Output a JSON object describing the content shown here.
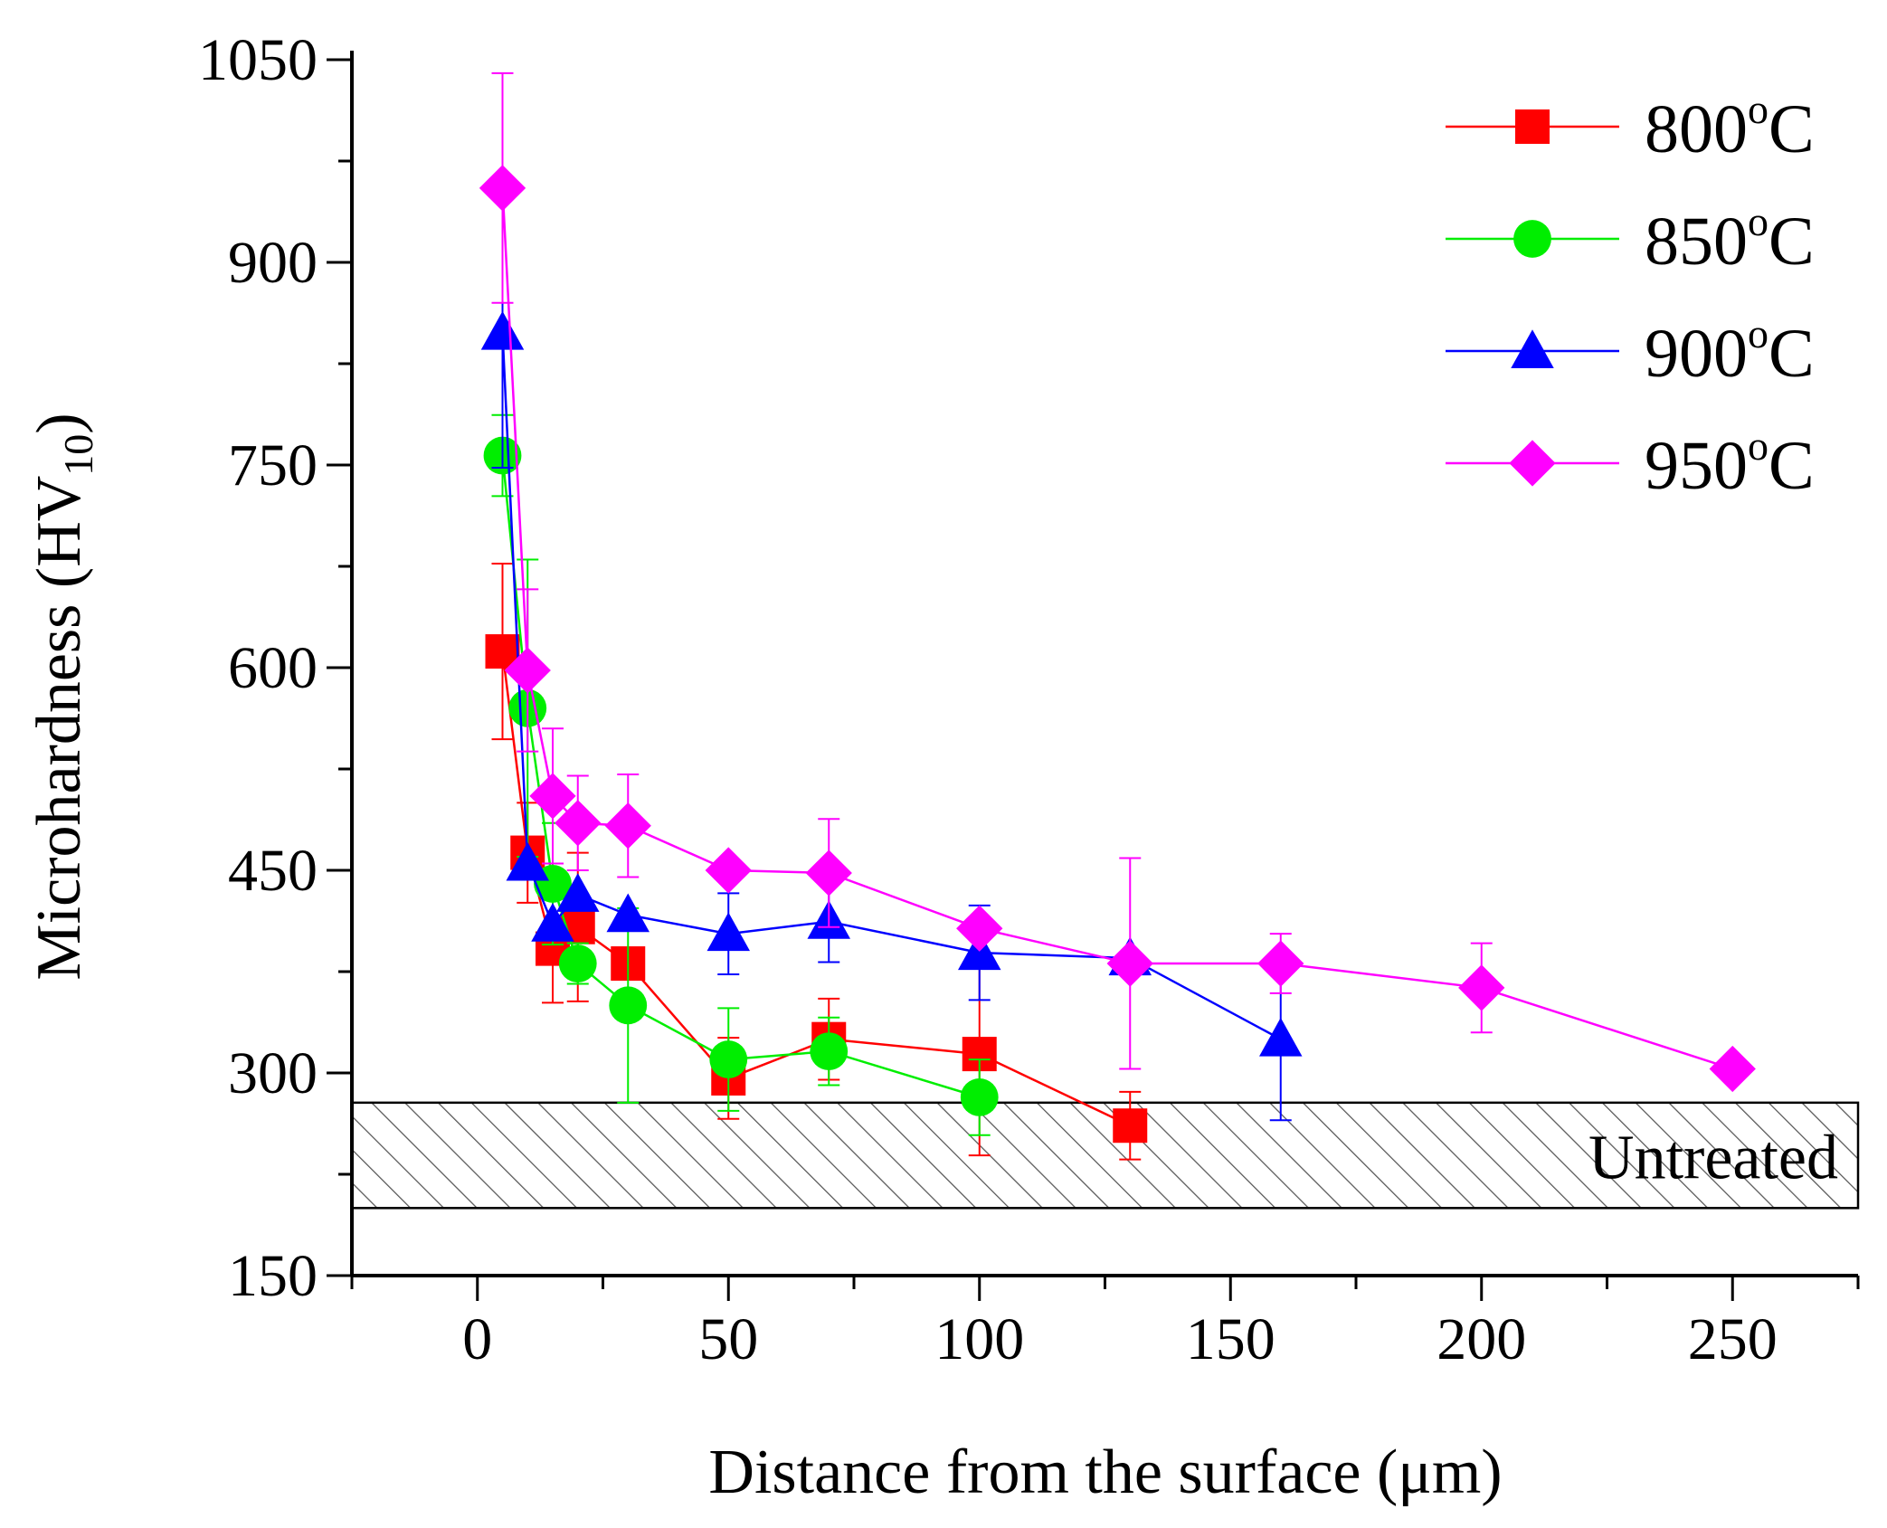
{
  "chart_data": {
    "type": "scatter",
    "title": "",
    "xlabel": "Distance from the surface (μm)",
    "ylabel": {
      "main": "Microhardness (HV",
      "sub": "10",
      "close": ")"
    },
    "xlim": [
      -25,
      275
    ],
    "ylim": [
      150,
      1050
    ],
    "xticks": [
      0,
      50,
      100,
      150,
      200,
      250
    ],
    "yticks": [
      150,
      300,
      450,
      600,
      750,
      900,
      1050
    ],
    "xtick_labels": [
      "0",
      "50",
      "100",
      "150",
      "200",
      "250"
    ],
    "ytick_labels": [
      "150",
      "300",
      "450",
      "600",
      "750",
      "900",
      "1050"
    ],
    "legend_position": "top-right",
    "band": {
      "label": "Untreated",
      "ymin": 200,
      "ymax": 278
    },
    "series": [
      {
        "name": "800",
        "unit_sup": "o",
        "unit": "C",
        "color": "#ff0000",
        "marker": "square",
        "points": [
          {
            "x": 5,
            "y": 612,
            "err": 65
          },
          {
            "x": 10,
            "y": 463,
            "err": 37
          },
          {
            "x": 15,
            "y": 392,
            "err": 40
          },
          {
            "x": 20,
            "y": 408,
            "err": 55
          },
          {
            "x": 30,
            "y": 381,
            "err": 0
          },
          {
            "x": 50,
            "y": 296,
            "err": 30
          },
          {
            "x": 70,
            "y": 325,
            "err": 30
          },
          {
            "x": 100,
            "y": 314,
            "err": 75
          },
          {
            "x": 130,
            "y": 261,
            "err": 25
          }
        ]
      },
      {
        "name": "850",
        "unit_sup": "o",
        "unit": "C",
        "color": "#00ee00",
        "marker": "circle",
        "points": [
          {
            "x": 5,
            "y": 757,
            "err": 30
          },
          {
            "x": 10,
            "y": 570,
            "err": 110
          },
          {
            "x": 15,
            "y": 440,
            "err": 45
          },
          {
            "x": 20,
            "y": 381,
            "err": 15
          },
          {
            "x": 30,
            "y": 350,
            "err": 72
          },
          {
            "x": 50,
            "y": 310,
            "err": 38
          },
          {
            "x": 70,
            "y": 316,
            "err": 25
          },
          {
            "x": 100,
            "y": 282,
            "err": 28
          }
        ]
      },
      {
        "name": "900",
        "unit_sup": "o",
        "unit": "C",
        "color": "#0000ff",
        "marker": "triangle",
        "points": [
          {
            "x": 5,
            "y": 848,
            "err": 100
          },
          {
            "x": 10,
            "y": 455,
            "err": 0
          },
          {
            "x": 15,
            "y": 410,
            "err": 0
          },
          {
            "x": 20,
            "y": 432,
            "err": 0
          },
          {
            "x": 30,
            "y": 417,
            "err": 0
          },
          {
            "x": 50,
            "y": 403,
            "err": 30
          },
          {
            "x": 70,
            "y": 412,
            "err": 30
          },
          {
            "x": 100,
            "y": 389,
            "err": 35
          },
          {
            "x": 130,
            "y": 385,
            "err": 0
          },
          {
            "x": 160,
            "y": 325,
            "err": 60
          }
        ]
      },
      {
        "name": "950",
        "unit_sup": "o",
        "unit": "C",
        "color": "#ff00ff",
        "marker": "diamond",
        "points": [
          {
            "x": 5,
            "y": 955,
            "err": 85
          },
          {
            "x": 10,
            "y": 598,
            "err": 60
          },
          {
            "x": 15,
            "y": 505,
            "err": 50
          },
          {
            "x": 20,
            "y": 485,
            "err": 35
          },
          {
            "x": 30,
            "y": 483,
            "err": 38
          },
          {
            "x": 50,
            "y": 450,
            "err": 0
          },
          {
            "x": 70,
            "y": 448,
            "err": 40
          },
          {
            "x": 100,
            "y": 407,
            "err": 0
          },
          {
            "x": 130,
            "y": 381,
            "err": 78
          },
          {
            "x": 160,
            "y": 381,
            "err": 22
          },
          {
            "x": 200,
            "y": 363,
            "err": 33
          },
          {
            "x": 250,
            "y": 303,
            "err": 0
          }
        ]
      }
    ]
  }
}
